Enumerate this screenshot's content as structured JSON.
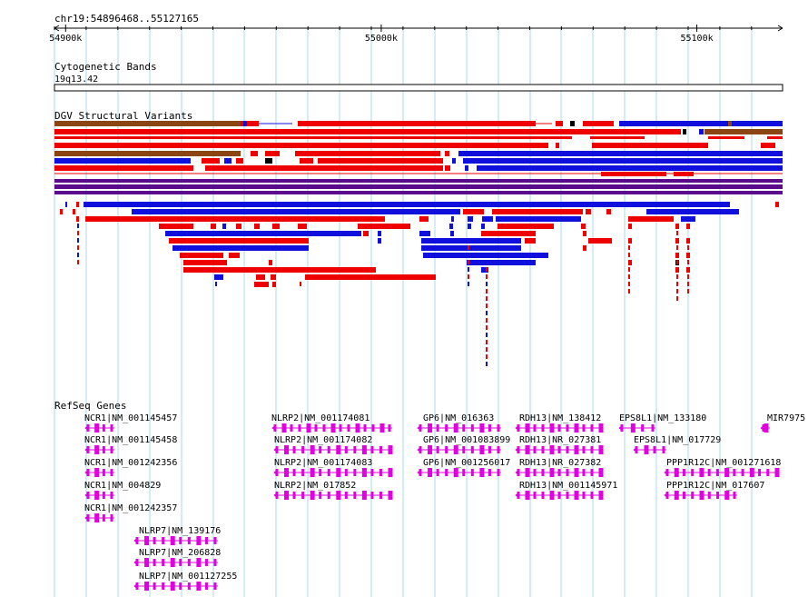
{
  "ruler": {
    "location": "chr19:54896468..55127165",
    "ticks": [
      {
        "label": "54900k",
        "pos": 54900000
      },
      {
        "label": "55000k",
        "pos": 55000000
      },
      {
        "label": "55100k",
        "pos": 55100000
      }
    ]
  },
  "region": {
    "start": 54896468,
    "end": 55127165
  },
  "tracks": {
    "cytoband": {
      "title": "Cytogenetic Bands",
      "band": "19q13.42"
    },
    "dgv": {
      "title": "DGV Structural Variants"
    },
    "refseq": {
      "title": "RefSeq Genes"
    }
  },
  "colors": {
    "gain": "#ee0000",
    "loss": "#1010dd",
    "gain_loss": "#8b4513",
    "complex": "#5b0a8c",
    "gene": "#e000e0",
    "grid": "#aad8ee"
  },
  "genes": [
    {
      "label": "NCR1|NM_001145457"
    },
    {
      "label": "NCR1|NM_001145458"
    },
    {
      "label": "NCR1|NM_001242356"
    },
    {
      "label": "NCR1|NM_004829"
    },
    {
      "label": "NCR1|NM_001242357"
    },
    {
      "label": "NLRP7|NM_139176"
    },
    {
      "label": "NLRP7|NM_206828"
    },
    {
      "label": "NLRP7|NM_001127255"
    },
    {
      "label": "NLRP2|NM_001174081"
    },
    {
      "label": "NLRP2|NM_001174082"
    },
    {
      "label": "NLRP2|NM_001174083"
    },
    {
      "label": "NLRP2|NM_017852"
    },
    {
      "label": "GP6|NM_016363"
    },
    {
      "label": "GP6|NM_001083899"
    },
    {
      "label": "GP6|NM_001256017"
    },
    {
      "label": "RDH13|NM_138412"
    },
    {
      "label": "RDH13|NR_027381"
    },
    {
      "label": "RDH13|NR_027382"
    },
    {
      "label": "RDH13|NM_001145971"
    },
    {
      "label": "EPS8L1|NM_133180"
    },
    {
      "label": "EPS8L1|NM_017729"
    },
    {
      "label": "PPP1R12C|NM_001271618"
    },
    {
      "label": "PPP1R12C|NM_017607"
    },
    {
      "label": "MIR7975"
    }
  ]
}
